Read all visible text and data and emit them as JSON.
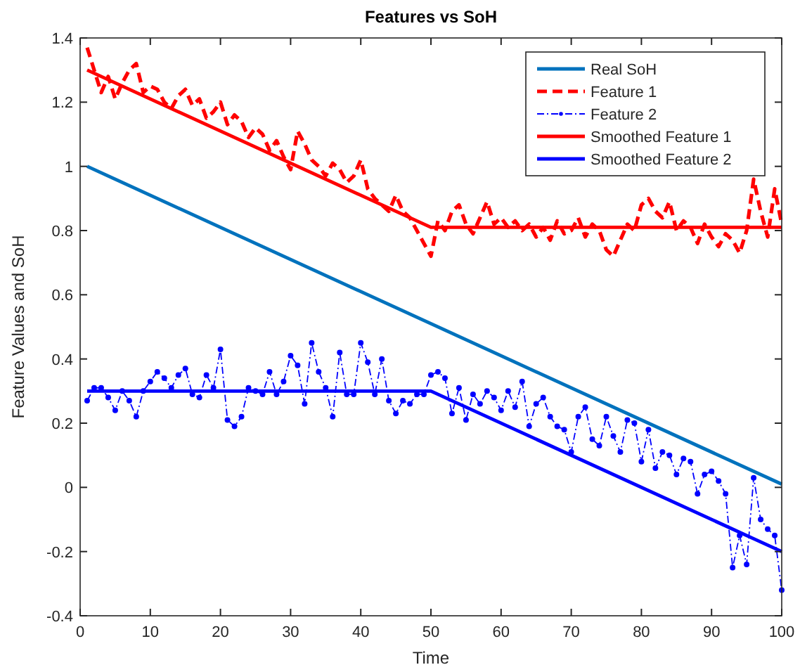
{
  "chart_data": {
    "type": "line",
    "title": "Features vs SoH",
    "xlabel": "Time",
    "ylabel": "Feature Values and SoH",
    "xlim": [
      0,
      100
    ],
    "xticks": [
      0,
      10,
      20,
      30,
      40,
      50,
      60,
      70,
      80,
      90,
      100
    ],
    "ylim": [
      -0.4,
      1.4
    ],
    "yticks": [
      -0.4,
      -0.2,
      0,
      0.2,
      0.4,
      0.6,
      0.8,
      1,
      1.2,
      1.4
    ],
    "grid": false,
    "legend": "top right",
    "marker": "none",
    "line_style": "solid",
    "series": [
      {
        "name": "Real SoH",
        "color": "#0072bd",
        "x": [
          1,
          100
        ],
        "values": [
          1.0,
          0.01
        ]
      },
      {
        "name": "Feature 1",
        "color": "#ff0000",
        "line_style": "dashed",
        "x": [
          1,
          2,
          3,
          4,
          5,
          6,
          7,
          8,
          9,
          10,
          11,
          12,
          13,
          14,
          15,
          16,
          17,
          18,
          19,
          20,
          21,
          22,
          23,
          24,
          25,
          26,
          27,
          28,
          29,
          30,
          31,
          32,
          33,
          34,
          35,
          36,
          37,
          38,
          39,
          40,
          41,
          42,
          43,
          44,
          45,
          46,
          47,
          48,
          49,
          50,
          51,
          52,
          53,
          54,
          55,
          56,
          57,
          58,
          59,
          60,
          61,
          62,
          63,
          64,
          65,
          66,
          67,
          68,
          69,
          70,
          71,
          72,
          73,
          74,
          75,
          76,
          77,
          78,
          79,
          80,
          81,
          82,
          83,
          84,
          85,
          86,
          87,
          88,
          89,
          90,
          91,
          92,
          93,
          94,
          95,
          96,
          97,
          98,
          99,
          100
        ],
        "values": [
          1.37,
          1.3,
          1.23,
          1.28,
          1.21,
          1.26,
          1.3,
          1.32,
          1.23,
          1.25,
          1.24,
          1.2,
          1.18,
          1.22,
          1.24,
          1.19,
          1.21,
          1.15,
          1.17,
          1.2,
          1.13,
          1.16,
          1.14,
          1.09,
          1.12,
          1.1,
          1.05,
          1.08,
          1.03,
          0.99,
          1.11,
          1.07,
          1.02,
          1.0,
          0.97,
          1.01,
          0.99,
          0.95,
          0.97,
          1.02,
          0.93,
          0.9,
          0.88,
          0.86,
          0.91,
          0.86,
          0.84,
          0.8,
          0.76,
          0.72,
          0.83,
          0.8,
          0.86,
          0.88,
          0.82,
          0.79,
          0.84,
          0.89,
          0.82,
          0.84,
          0.81,
          0.83,
          0.8,
          0.82,
          0.78,
          0.81,
          0.77,
          0.83,
          0.79,
          0.8,
          0.84,
          0.78,
          0.82,
          0.8,
          0.74,
          0.72,
          0.77,
          0.82,
          0.8,
          0.88,
          0.9,
          0.86,
          0.84,
          0.89,
          0.8,
          0.83,
          0.81,
          0.76,
          0.82,
          0.78,
          0.75,
          0.79,
          0.77,
          0.73,
          0.8,
          0.96,
          0.86,
          0.78,
          0.93,
          0.82
        ]
      },
      {
        "name": "Feature 2",
        "color": "#0000ff",
        "line_style": "dotted",
        "marker": "circle",
        "x": [
          1,
          2,
          3,
          4,
          5,
          6,
          7,
          8,
          9,
          10,
          11,
          12,
          13,
          14,
          15,
          16,
          17,
          18,
          19,
          20,
          21,
          22,
          23,
          24,
          25,
          26,
          27,
          28,
          29,
          30,
          31,
          32,
          33,
          34,
          35,
          36,
          37,
          38,
          39,
          40,
          41,
          42,
          43,
          44,
          45,
          46,
          47,
          48,
          49,
          50,
          51,
          52,
          53,
          54,
          55,
          56,
          57,
          58,
          59,
          60,
          61,
          62,
          63,
          64,
          65,
          66,
          67,
          68,
          69,
          70,
          71,
          72,
          73,
          74,
          75,
          76,
          77,
          78,
          79,
          80,
          81,
          82,
          83,
          84,
          85,
          86,
          87,
          88,
          89,
          90,
          91,
          92,
          93,
          94,
          95,
          96,
          97,
          98,
          99,
          100
        ],
        "values": [
          0.27,
          0.31,
          0.31,
          0.28,
          0.24,
          0.3,
          0.27,
          0.22,
          0.3,
          0.33,
          0.36,
          0.34,
          0.31,
          0.35,
          0.37,
          0.29,
          0.28,
          0.35,
          0.31,
          0.43,
          0.21,
          0.19,
          0.22,
          0.31,
          0.3,
          0.29,
          0.36,
          0.29,
          0.33,
          0.41,
          0.38,
          0.26,
          0.45,
          0.36,
          0.31,
          0.22,
          0.42,
          0.29,
          0.29,
          0.45,
          0.39,
          0.29,
          0.4,
          0.27,
          0.23,
          0.27,
          0.26,
          0.29,
          0.29,
          0.35,
          0.36,
          0.34,
          0.23,
          0.31,
          0.21,
          0.29,
          0.26,
          0.3,
          0.28,
          0.24,
          0.3,
          0.25,
          0.33,
          0.19,
          0.26,
          0.28,
          0.22,
          0.19,
          0.18,
          0.11,
          0.22,
          0.25,
          0.15,
          0.13,
          0.22,
          0.16,
          0.11,
          0.21,
          0.2,
          0.08,
          0.18,
          0.06,
          0.11,
          0.1,
          0.04,
          0.09,
          0.08,
          -0.02,
          0.04,
          0.05,
          0.02,
          -0.02,
          -0.25,
          -0.15,
          -0.24,
          0.03,
          -0.1,
          -0.13,
          -0.15,
          -0.32
        ]
      },
      {
        "name": "Smoothed Feature 1",
        "color": "#ff0000",
        "x": [
          1,
          50,
          100
        ],
        "values": [
          1.3,
          0.81,
          0.81
        ]
      },
      {
        "name": "Smoothed Feature 2",
        "color": "#0000ff",
        "x": [
          1,
          50,
          100
        ],
        "values": [
          0.3,
          0.3,
          -0.2
        ]
      }
    ]
  }
}
